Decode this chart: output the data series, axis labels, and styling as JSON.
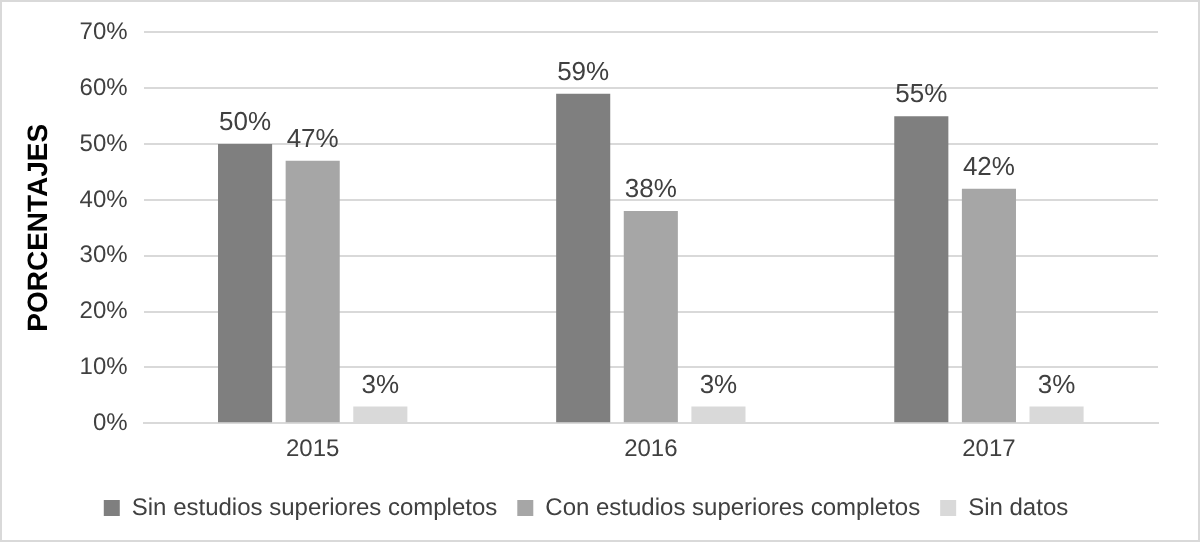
{
  "chart_data": {
    "type": "bar",
    "ylabel": "PORCENTAJES",
    "categories": [
      "2015",
      "2016",
      "2017"
    ],
    "series": [
      {
        "name": "Sin estudios superiores completos",
        "color": "#7f7f7f",
        "values": [
          50,
          59,
          55
        ],
        "value_labels": [
          "50%",
          "59%",
          "55%"
        ]
      },
      {
        "name": "Con estudios superiores completos",
        "color": "#a6a6a6",
        "values": [
          47,
          38,
          42
        ],
        "value_labels": [
          "47%",
          "38%",
          "42%"
        ]
      },
      {
        "name": "Sin datos",
        "color": "#d9d9d9",
        "values": [
          3,
          3,
          3
        ],
        "value_labels": [
          "3%",
          "3%",
          "3%"
        ]
      }
    ],
    "ylim": [
      0,
      70
    ],
    "yticks": [
      {
        "value": 0,
        "label": "0%"
      },
      {
        "value": 10,
        "label": "10%"
      },
      {
        "value": 20,
        "label": "20%"
      },
      {
        "value": 30,
        "label": "30%"
      },
      {
        "value": 40,
        "label": "40%"
      },
      {
        "value": 50,
        "label": "50%"
      },
      {
        "value": 60,
        "label": "60%"
      },
      {
        "value": 70,
        "label": "70%"
      }
    ],
    "grid": "y",
    "legend": "bottom"
  }
}
